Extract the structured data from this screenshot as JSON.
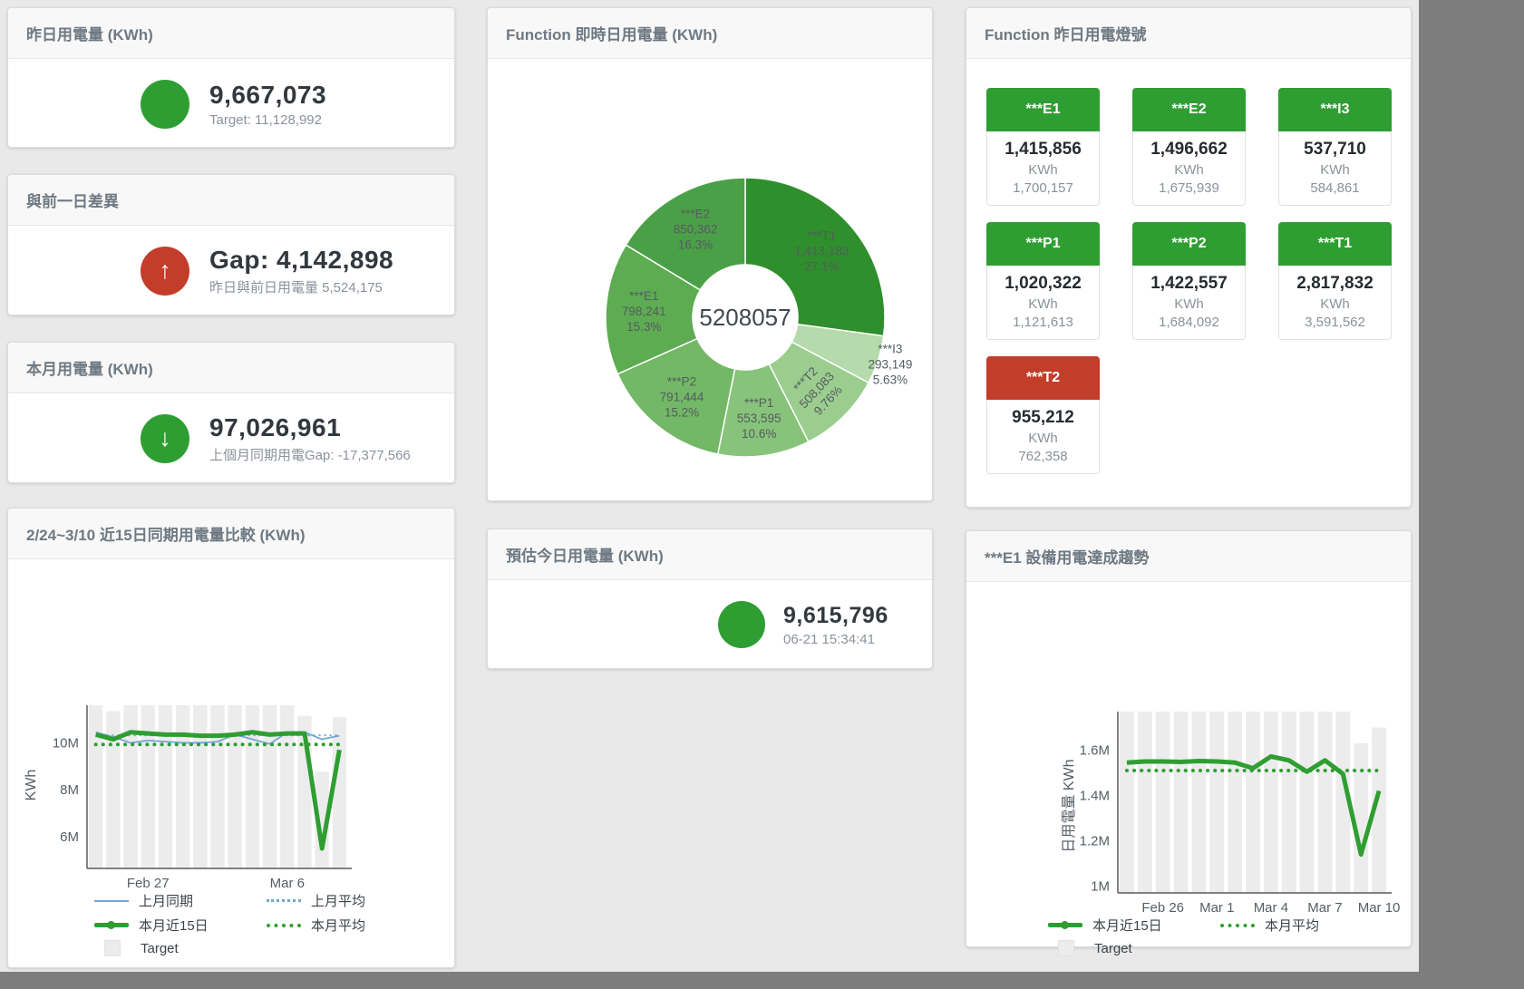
{
  "colors": {
    "green": "#2f9e32",
    "red": "#c23d2a",
    "blue": "#72a5d3",
    "target_bar": "#ececec"
  },
  "cards": {
    "yesterday": {
      "title": "昨日用電量 (KWh)",
      "value": "9,667,073",
      "subtitle": "Target: 11,128,992"
    },
    "gap": {
      "title": "與前一日差異",
      "value": "Gap: 4,142,898",
      "subtitle": "昨日與前日用電量 5,524,175",
      "arrow": "↑"
    },
    "month": {
      "title": "本月用電量 (KWh)",
      "value": "97,026,961",
      "subtitle": "上個月同期用電Gap: -17,377,566",
      "arrow": "↓"
    },
    "estimate": {
      "title": "預估今日用電量 (KWh)",
      "value": "9,615,796",
      "subtitle": "06-21 15:34:41"
    },
    "compare": {
      "title": "2/24~3/10 近15日同期用電量比較 (KWh)",
      "legend": [
        "上月同期",
        "上月平均",
        "本月近15日",
        "本月平均",
        "Target"
      ]
    },
    "donut": {
      "title": "Function 即時日用電量 (KWh)"
    },
    "lights": {
      "title": "Function 昨日用電燈號",
      "tiles": [
        {
          "label": "***E1",
          "value": "1,415,856",
          "unit": "KWh",
          "target": "1,700,157",
          "status": "green"
        },
        {
          "label": "***E2",
          "value": "1,496,662",
          "unit": "KWh",
          "target": "1,675,939",
          "status": "green"
        },
        {
          "label": "***I3",
          "value": "537,710",
          "unit": "KWh",
          "target": "584,861",
          "status": "green"
        },
        {
          "label": "***P1",
          "value": "1,020,322",
          "unit": "KWh",
          "target": "1,121,613",
          "status": "green"
        },
        {
          "label": "***P2",
          "value": "1,422,557",
          "unit": "KWh",
          "target": "1,684,092",
          "status": "green"
        },
        {
          "label": "***T1",
          "value": "2,817,832",
          "unit": "KWh",
          "target": "3,591,562",
          "status": "green"
        },
        {
          "label": "***T2",
          "value": "955,212",
          "unit": "KWh",
          "target": "762,358",
          "status": "red"
        }
      ]
    },
    "trend": {
      "title": "***E1 設備用電達成趨勢",
      "legend": [
        "本月近15日",
        "本月平均",
        "Target"
      ]
    }
  },
  "chart_data": [
    {
      "id": "donut",
      "type": "pie",
      "title": "Function 即時日用電量 (KWh)",
      "center_label": "5208057",
      "slices": [
        {
          "name": "***T1",
          "value": 1413183,
          "value_label": "1,413,183",
          "pct_label": "27.1%",
          "color": "#2e8f2c"
        },
        {
          "name": "***I3",
          "value": 293149,
          "value_label": "293,149",
          "pct_label": "5.63%",
          "color": "#b5daab",
          "label_r": 168
        },
        {
          "name": "***T2",
          "value": 508083,
          "value_label": "508,083",
          "pct_label": "9.76%",
          "color": "#9bcd8f",
          "label_rotate": -47
        },
        {
          "name": "***P1",
          "value": 553595,
          "value_label": "553,595",
          "pct_label": "10.6%",
          "color": "#87c37a"
        },
        {
          "name": "***P2",
          "value": 791444,
          "value_label": "791,444",
          "pct_label": "15.2%",
          "color": "#73b866"
        },
        {
          "name": "***E1",
          "value": 798241,
          "value_label": "798,241",
          "pct_label": "15.3%",
          "color": "#5dac52"
        },
        {
          "name": "***E2",
          "value": 850362,
          "value_label": "850,362",
          "pct_label": "16.3%",
          "color": "#4aa047"
        }
      ]
    },
    {
      "id": "compare",
      "type": "line",
      "title": "2/24~3/10 近15日同期用電量比較 (KWh)",
      "ylabel": "KWh",
      "unit": "M",
      "ylim": [
        4.65,
        11.6
      ],
      "x": [
        "2/24",
        "2/25",
        "2/26",
        "2/27",
        "2/28",
        "3/1",
        "3/2",
        "3/3",
        "3/4",
        "3/5",
        "3/6",
        "3/7",
        "3/8",
        "3/9",
        "3/10"
      ],
      "yticks": [
        {
          "v": 6,
          "label": "6M"
        },
        {
          "v": 8,
          "label": "8M"
        },
        {
          "v": 10,
          "label": "10M"
        }
      ],
      "xticks": [
        {
          "i": 3,
          "label": "Feb 27"
        },
        {
          "i": 11,
          "label": "Mar 6"
        }
      ],
      "series": [
        {
          "name": "Target",
          "type": "bar",
          "color": "#ececec",
          "values": [
            11.6,
            11.35,
            11.6,
            11.6,
            11.6,
            11.6,
            11.6,
            11.6,
            11.6,
            11.6,
            11.6,
            11.6,
            11.15,
            8.77,
            11.1
          ]
        },
        {
          "name": "上月平均",
          "type": "line",
          "color": "#72a5d3",
          "width": 2,
          "dash": "2 4",
          "values": [
            10.32,
            10.32,
            10.32,
            10.32,
            10.32,
            10.32,
            10.32,
            10.32,
            10.32,
            10.32,
            10.32,
            10.32,
            10.32,
            10.32,
            10.32
          ]
        },
        {
          "name": "上月同期",
          "type": "line",
          "color": "#72a5d3",
          "width": 1.8,
          "values": [
            10.45,
            10.25,
            10.0,
            10.1,
            10.05,
            10.0,
            10.0,
            10.05,
            10.35,
            10.15,
            9.95,
            10.45,
            10.45,
            10.15,
            10.3
          ]
        },
        {
          "name": "本月平均",
          "type": "line",
          "color": "#2f9e32",
          "width": 4,
          "dash": "0.1 8",
          "cap": "round",
          "values": [
            9.93,
            9.93,
            9.93,
            9.93,
            9.93,
            9.93,
            9.93,
            9.93,
            9.93,
            9.93,
            9.93,
            9.93,
            9.93,
            9.93,
            9.93
          ]
        },
        {
          "name": "本月近15日",
          "type": "line",
          "color": "#2f9e32",
          "width": 5,
          "values": [
            10.35,
            10.15,
            10.45,
            10.4,
            10.35,
            10.35,
            10.3,
            10.3,
            10.35,
            10.45,
            10.35,
            10.4,
            10.4,
            5.5,
            9.7
          ]
        }
      ]
    },
    {
      "id": "trend",
      "type": "line",
      "title": "***E1 設備用電達成趨勢",
      "ylabel": "日用電量 KWh",
      "unit": "M",
      "ylim": [
        0.97,
        1.77
      ],
      "x": [
        "2/24",
        "2/25",
        "2/26",
        "2/27",
        "2/28",
        "3/1",
        "3/2",
        "3/3",
        "3/4",
        "3/5",
        "3/6",
        "3/7",
        "3/8",
        "3/9",
        "3/10"
      ],
      "yticks": [
        {
          "v": 1,
          "label": "1M"
        },
        {
          "v": 1.2,
          "label": "1.2M"
        },
        {
          "v": 1.4,
          "label": "1.4M"
        },
        {
          "v": 1.6,
          "label": "1.6M"
        }
      ],
      "xticks": [
        {
          "i": 2,
          "label": "Feb 26"
        },
        {
          "i": 5,
          "label": "Mar 1"
        },
        {
          "i": 8,
          "label": "Mar 4"
        },
        {
          "i": 11,
          "label": "Mar 7"
        },
        {
          "i": 14,
          "label": "Mar 10"
        }
      ],
      "series": [
        {
          "name": "Target",
          "type": "bar",
          "color": "#ececec",
          "values": [
            1.77,
            1.77,
            1.77,
            1.77,
            1.77,
            1.77,
            1.77,
            1.77,
            1.77,
            1.77,
            1.77,
            1.77,
            1.77,
            1.63,
            1.7
          ]
        },
        {
          "name": "本月平均",
          "type": "line",
          "color": "#2f9e32",
          "width": 4,
          "dash": "0.1 8",
          "cap": "round",
          "values": [
            1.51,
            1.51,
            1.51,
            1.51,
            1.51,
            1.51,
            1.51,
            1.51,
            1.51,
            1.51,
            1.51,
            1.51,
            1.51,
            1.51,
            1.51
          ]
        },
        {
          "name": "本月近15日",
          "type": "line",
          "color": "#2f9e32",
          "width": 5,
          "values": [
            1.545,
            1.55,
            1.55,
            1.548,
            1.552,
            1.55,
            1.545,
            1.52,
            1.572,
            1.555,
            1.505,
            1.555,
            1.495,
            1.14,
            1.42
          ]
        }
      ]
    }
  ]
}
